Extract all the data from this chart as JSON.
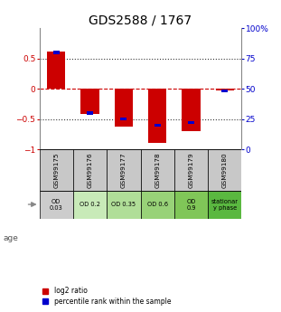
{
  "title": "GDS2588 / 1767",
  "samples": [
    "GSM99175",
    "GSM99176",
    "GSM99177",
    "GSM99178",
    "GSM99179",
    "GSM99180"
  ],
  "log2_ratio": [
    0.62,
    -0.42,
    -0.62,
    -0.9,
    -0.7,
    -0.03
  ],
  "percentile_rank": [
    80,
    30,
    25,
    20,
    22,
    48
  ],
  "age_labels": [
    "OD\n0.03",
    "OD 0.2",
    "OD 0.35",
    "OD 0.6",
    "OD\n0.9",
    "stationar\ny phase"
  ],
  "age_bg_colors": [
    "#cccccc",
    "#c8eab8",
    "#b0de98",
    "#98d278",
    "#80c658",
    "#5ab840"
  ],
  "sample_bg_color": "#c8c8c8",
  "ylim_left": [
    -1,
    1
  ],
  "ylim_right": [
    0,
    100
  ],
  "red_color": "#cc0000",
  "blue_color": "#0000cc",
  "title_fontsize": 10,
  "tick_fontsize": 6.5,
  "dotted_line_color": "#333333",
  "bar_width": 0.55
}
